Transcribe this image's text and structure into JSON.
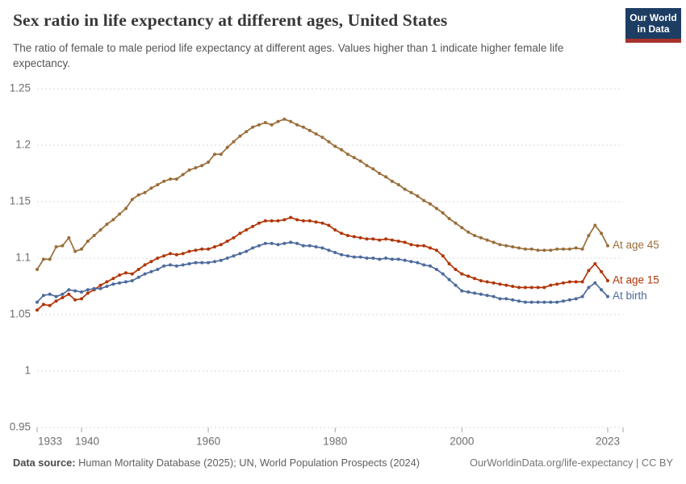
{
  "header": {
    "title": "Sex ratio in life expectancy at different ages, United States",
    "subtitle": "The ratio of female to male period life expectancy at different ages. Values higher than 1 indicate higher female life expectancy.",
    "logo_line1": "Our World",
    "logo_line2": "in Data"
  },
  "footer": {
    "source_label": "Data source:",
    "source_text": " Human Mortality Database (2025); UN, World Population Prospects (2024)",
    "rights": "OurWorldinData.org/life-expectancy | CC BY"
  },
  "colors": {
    "logo_navy": "#1d3d63",
    "logo_red": "#a8322c",
    "grid": "#d9d9d9",
    "tick": "#a6a6a6",
    "axis_text": "#6e6e6e",
    "title_text": "#383838"
  },
  "chart_data": {
    "type": "line",
    "title": "Sex ratio in life expectancy at different ages, United States",
    "xlabel": "",
    "ylabel": "",
    "xlim": [
      1933,
      2023
    ],
    "ylim": [
      0.95,
      1.25
    ],
    "grid": "horizontal-dashed",
    "legend_position": "line-end-labels-right",
    "markers": true,
    "x_tick_values": [
      1933,
      1940,
      1960,
      1980,
      2000,
      2023
    ],
    "x_tick_labels": [
      "1933",
      "1940",
      "1960",
      "1980",
      "2000",
      "2023"
    ],
    "y_tick_values": [
      0.95,
      1.0,
      1.05,
      1.1,
      1.15,
      1.2,
      1.25
    ],
    "y_tick_labels": [
      "0.95",
      "1",
      "1.05",
      "1.1",
      "1.15",
      "1.2",
      "1.25"
    ],
    "x": [
      1933,
      1934,
      1935,
      1936,
      1937,
      1938,
      1939,
      1940,
      1941,
      1942,
      1943,
      1944,
      1945,
      1946,
      1947,
      1948,
      1949,
      1950,
      1951,
      1952,
      1953,
      1954,
      1955,
      1956,
      1957,
      1958,
      1959,
      1960,
      1961,
      1962,
      1963,
      1964,
      1965,
      1966,
      1967,
      1968,
      1969,
      1970,
      1971,
      1972,
      1973,
      1974,
      1975,
      1976,
      1977,
      1978,
      1979,
      1980,
      1981,
      1982,
      1983,
      1984,
      1985,
      1986,
      1987,
      1988,
      1989,
      1990,
      1991,
      1992,
      1993,
      1994,
      1995,
      1996,
      1997,
      1998,
      1999,
      2000,
      2001,
      2002,
      2003,
      2004,
      2005,
      2006,
      2007,
      2008,
      2009,
      2010,
      2011,
      2012,
      2013,
      2014,
      2015,
      2016,
      2017,
      2018,
      2019,
      2020,
      2021,
      2022,
      2023
    ],
    "series": [
      {
        "name": "At age 45",
        "color": "#996D39",
        "values": [
          1.09,
          1.099,
          1.099,
          1.11,
          1.111,
          1.118,
          1.106,
          1.108,
          1.115,
          1.12,
          1.125,
          1.13,
          1.134,
          1.139,
          1.144,
          1.152,
          1.156,
          1.158,
          1.162,
          1.165,
          1.168,
          1.17,
          1.17,
          1.174,
          1.178,
          1.18,
          1.182,
          1.185,
          1.192,
          1.192,
          1.198,
          1.203,
          1.208,
          1.212,
          1.216,
          1.218,
          1.22,
          1.218,
          1.221,
          1.223,
          1.221,
          1.218,
          1.216,
          1.213,
          1.21,
          1.207,
          1.203,
          1.199,
          1.196,
          1.192,
          1.189,
          1.186,
          1.182,
          1.179,
          1.175,
          1.172,
          1.168,
          1.165,
          1.161,
          1.158,
          1.155,
          1.151,
          1.148,
          1.144,
          1.14,
          1.135,
          1.131,
          1.127,
          1.123,
          1.12,
          1.118,
          1.116,
          1.114,
          1.112,
          1.111,
          1.11,
          1.109,
          1.108,
          1.108,
          1.107,
          1.107,
          1.107,
          1.108,
          1.108,
          1.108,
          1.109,
          1.108,
          1.12,
          1.129,
          1.122,
          1.111
        ]
      },
      {
        "name": "At age 15",
        "color": "#B13507",
        "values": [
          1.054,
          1.059,
          1.058,
          1.062,
          1.065,
          1.068,
          1.063,
          1.064,
          1.069,
          1.072,
          1.076,
          1.079,
          1.082,
          1.085,
          1.087,
          1.086,
          1.09,
          1.094,
          1.097,
          1.1,
          1.102,
          1.104,
          1.103,
          1.104,
          1.106,
          1.107,
          1.108,
          1.108,
          1.11,
          1.112,
          1.115,
          1.118,
          1.122,
          1.125,
          1.128,
          1.131,
          1.133,
          1.133,
          1.133,
          1.134,
          1.136,
          1.134,
          1.133,
          1.133,
          1.132,
          1.131,
          1.129,
          1.125,
          1.122,
          1.12,
          1.119,
          1.118,
          1.117,
          1.117,
          1.116,
          1.117,
          1.116,
          1.115,
          1.114,
          1.112,
          1.111,
          1.111,
          1.109,
          1.107,
          1.102,
          1.095,
          1.09,
          1.086,
          1.084,
          1.082,
          1.08,
          1.079,
          1.078,
          1.077,
          1.076,
          1.075,
          1.074,
          1.074,
          1.074,
          1.074,
          1.074,
          1.076,
          1.077,
          1.078,
          1.079,
          1.079,
          1.079,
          1.089,
          1.095,
          1.088,
          1.08
        ]
      },
      {
        "name": "At birth",
        "color": "#4C6A9C",
        "values": [
          1.061,
          1.067,
          1.068,
          1.066,
          1.068,
          1.072,
          1.071,
          1.07,
          1.072,
          1.073,
          1.073,
          1.075,
          1.077,
          1.078,
          1.079,
          1.08,
          1.083,
          1.086,
          1.088,
          1.09,
          1.093,
          1.094,
          1.093,
          1.094,
          1.095,
          1.096,
          1.096,
          1.096,
          1.097,
          1.098,
          1.1,
          1.102,
          1.104,
          1.106,
          1.109,
          1.111,
          1.113,
          1.113,
          1.112,
          1.113,
          1.114,
          1.113,
          1.111,
          1.111,
          1.11,
          1.109,
          1.107,
          1.105,
          1.103,
          1.102,
          1.101,
          1.101,
          1.1,
          1.1,
          1.099,
          1.1,
          1.099,
          1.099,
          1.098,
          1.097,
          1.096,
          1.094,
          1.093,
          1.09,
          1.086,
          1.081,
          1.076,
          1.071,
          1.07,
          1.069,
          1.068,
          1.067,
          1.066,
          1.064,
          1.064,
          1.063,
          1.062,
          1.061,
          1.061,
          1.061,
          1.061,
          1.061,
          1.061,
          1.062,
          1.063,
          1.064,
          1.066,
          1.074,
          1.078,
          1.072,
          1.066
        ]
      }
    ]
  }
}
